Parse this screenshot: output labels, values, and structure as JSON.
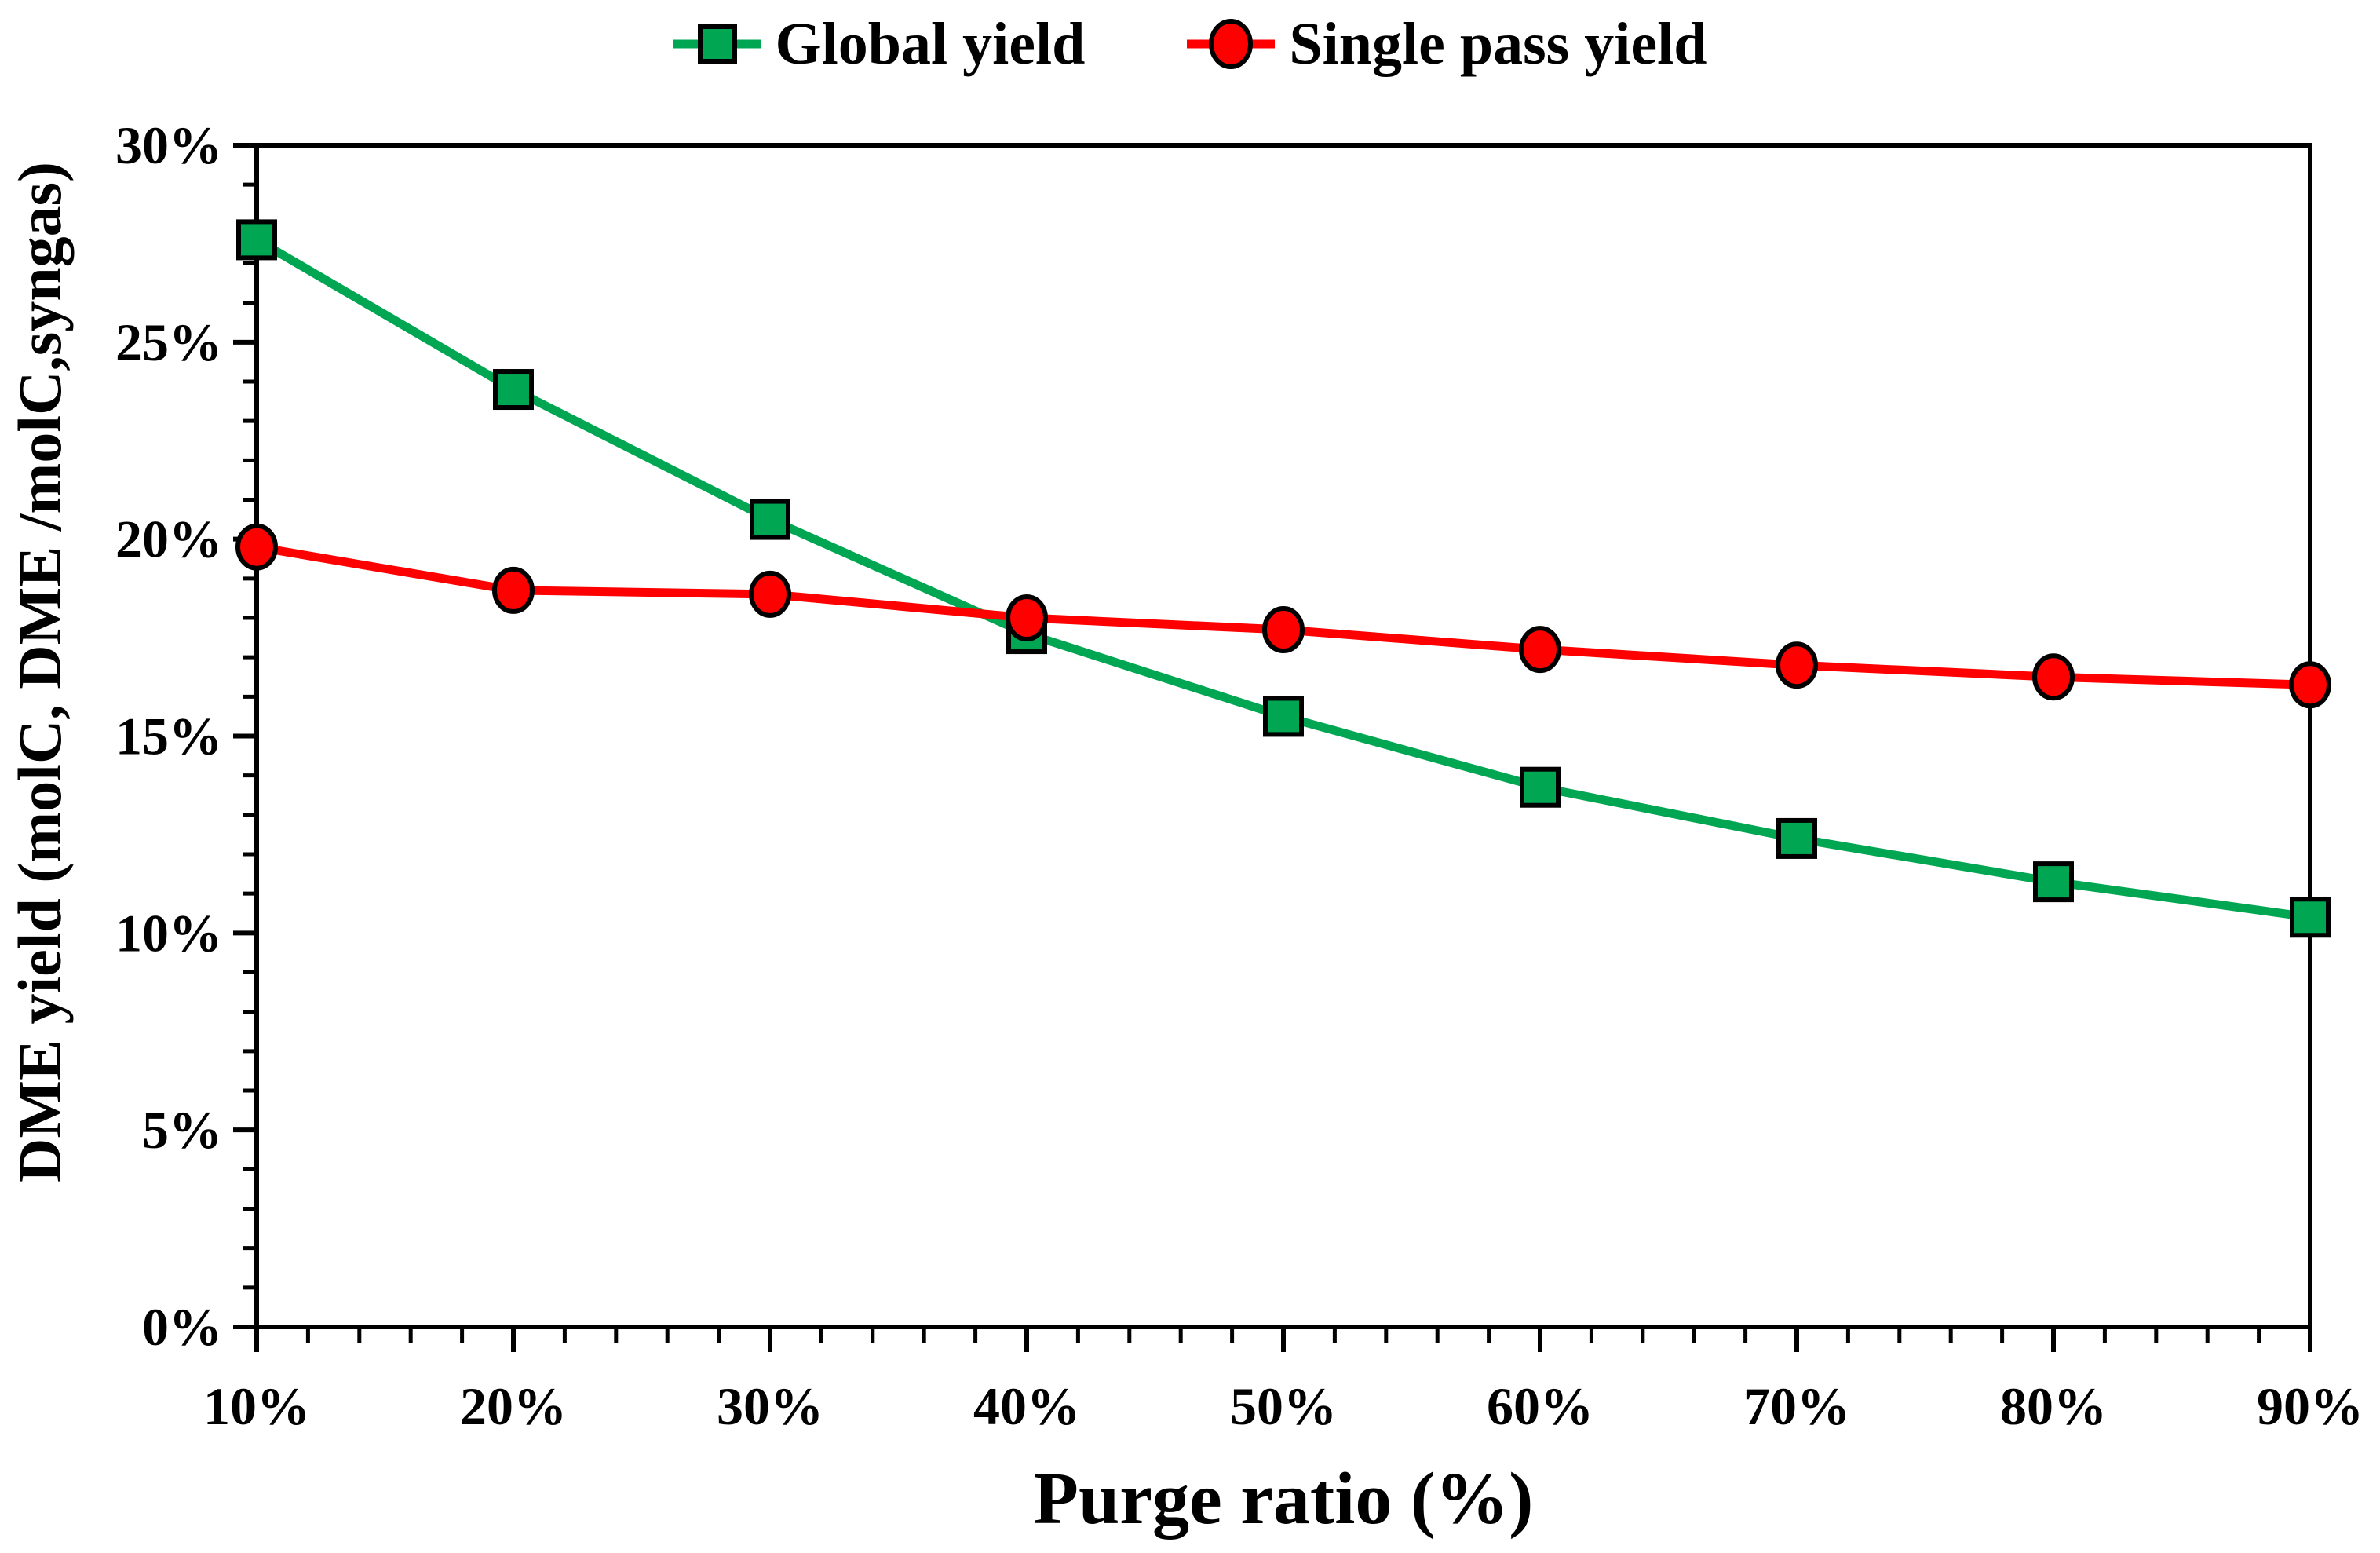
{
  "chart_data": {
    "type": "line",
    "xlabel": "Purge ratio (%)",
    "ylabel": "DME yield (molC, DME /molC,syngas)",
    "x": [
      10,
      20,
      30,
      40,
      50,
      60,
      70,
      80,
      90
    ],
    "x_tick_labels": [
      "10%",
      "20%",
      "30%",
      "40%",
      "50%",
      "60%",
      "70%",
      "80%",
      "90%"
    ],
    "y_tick_labels": [
      "0%",
      "5%",
      "10%",
      "15%",
      "20%",
      "25%",
      "30%"
    ],
    "xlim": [
      10,
      90
    ],
    "ylim": [
      0,
      30
    ],
    "x_major_step": 10,
    "x_minor_step": 2,
    "y_major_step": 5,
    "y_minor_step": 1,
    "grid": false,
    "legend_position": "top",
    "background_color": "#FFFFFF",
    "axis_color": "#000000",
    "series": [
      {
        "name": "Global yield",
        "marker": "square",
        "color": "#00A651",
        "values": [
          27.6,
          23.8,
          20.5,
          17.6,
          15.5,
          13.7,
          12.4,
          11.3,
          10.4
        ]
      },
      {
        "name": "Single pass yield",
        "marker": "circle",
        "color": "#FE0000",
        "values": [
          19.8,
          18.7,
          18.6,
          18.0,
          17.7,
          17.2,
          16.8,
          16.5,
          16.3
        ]
      }
    ]
  }
}
